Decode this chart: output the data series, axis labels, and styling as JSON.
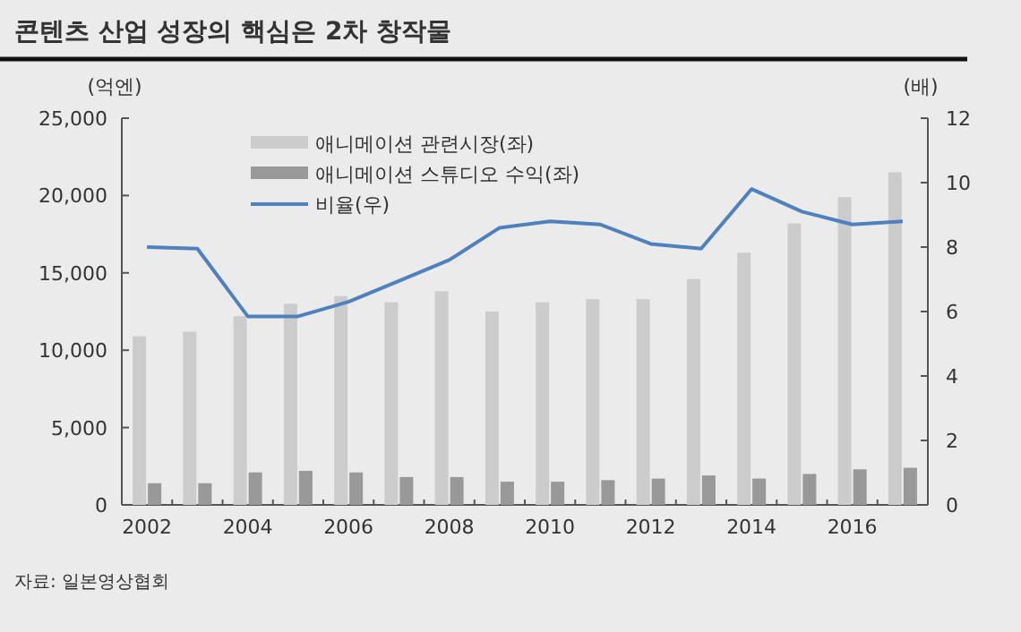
{
  "chart_data": {
    "type": "bar",
    "title": "콘텐츠 산업 성장의 핵심은 2차 창작물",
    "ylabel": "(억엔)",
    "y2label": "(배)",
    "categories": [
      "2002",
      null,
      "2004",
      null,
      "2006",
      null,
      "2008",
      null,
      "2010",
      null,
      "2012",
      null,
      "2014",
      null,
      "2016",
      null
    ],
    "series": [
      {
        "name": "애니메이션 관련시장(좌)",
        "color": "#cccccc",
        "values": [
          10900,
          11200,
          12200,
          13000,
          13500,
          13100,
          13800,
          12500,
          13100,
          13300,
          13300,
          14600,
          16300,
          18200,
          19900,
          21500
        ]
      },
      {
        "name": "애니메이션 스튜디오 수익(좌)",
        "color": "#999999",
        "values": [
          1400,
          1400,
          2100,
          2200,
          2100,
          1800,
          1800,
          1500,
          1500,
          1600,
          1700,
          1900,
          1700,
          2000,
          2300,
          2400
        ]
      },
      {
        "name": "비율(우)",
        "type": "line",
        "axis": "y2",
        "color": "#4f81bd",
        "values": [
          8.0,
          7.95,
          5.85,
          5.85,
          6.3,
          6.95,
          7.6,
          8.6,
          8.8,
          8.7,
          8.1,
          7.95,
          9.8,
          9.1,
          8.7,
          8.8
        ]
      }
    ],
    "ylim": [
      0,
      25000
    ],
    "yticks": [
      0,
      {
        "value": 5000,
        "label": "5,000"
      },
      {
        "value": 10000,
        "label": "10,000"
      },
      {
        "value": 15000,
        "label": "15,000"
      },
      {
        "value": 20000,
        "label": "20,000"
      },
      {
        "value": 25000,
        "label": "25,000"
      }
    ],
    "y2lim": [
      0,
      12
    ],
    "y2ticks": [
      0,
      2,
      4,
      6,
      8,
      10,
      12
    ],
    "legend": "top",
    "grid": false,
    "annotations": [
      "자료: 일본영상협회"
    ]
  }
}
